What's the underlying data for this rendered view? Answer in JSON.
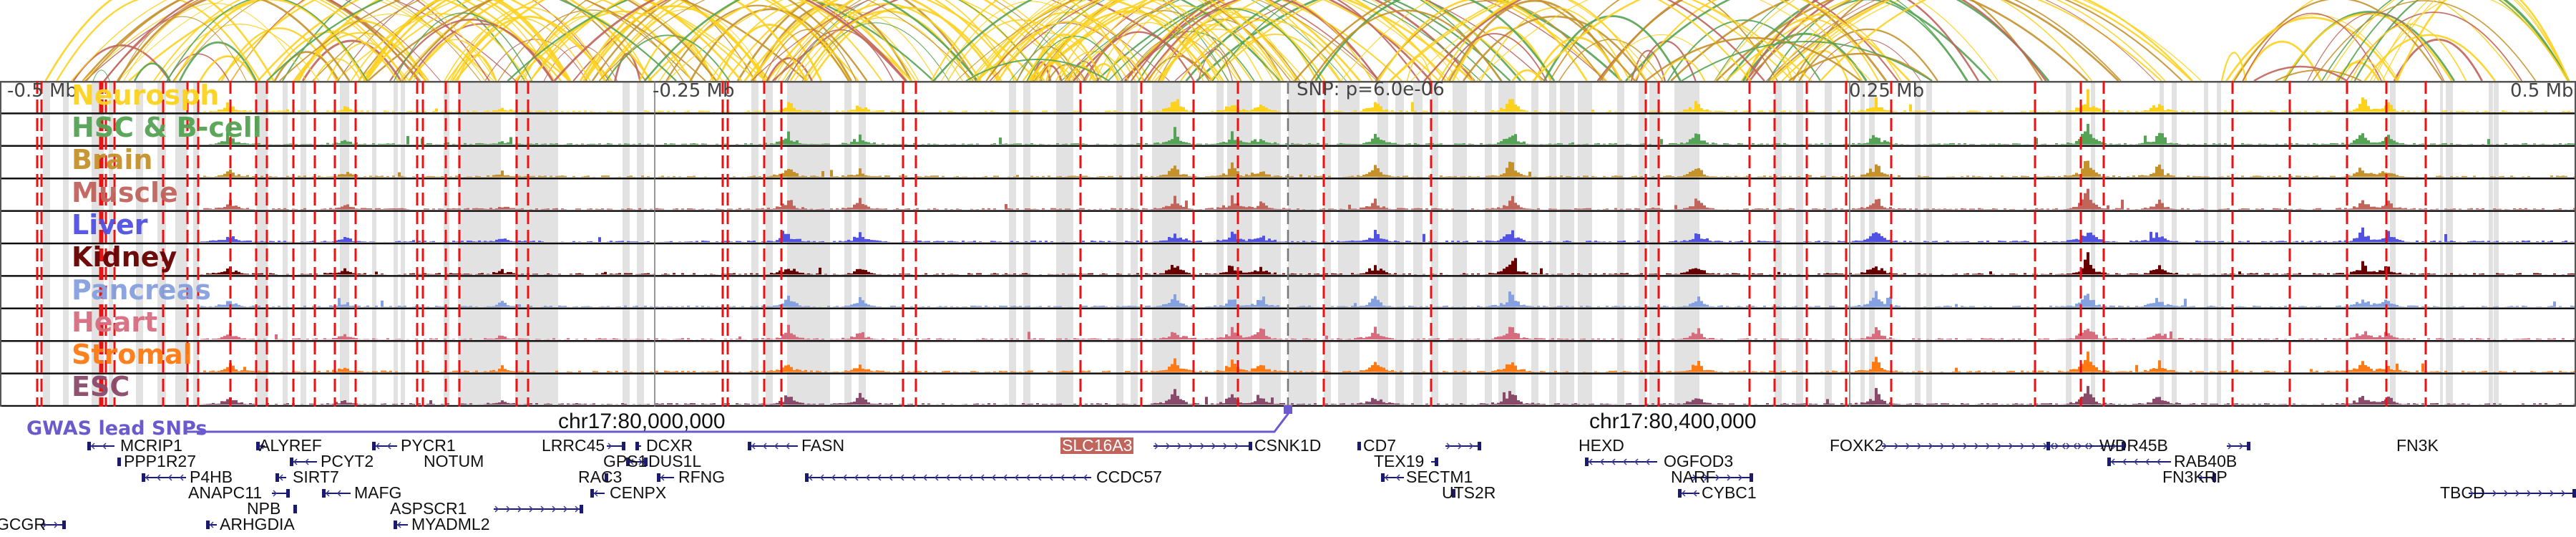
{
  "axis": {
    "labels": [
      "-0.5 Mb",
      "-0.25 Mb",
      "0.25 Mb",
      "0.5 Mb"
    ],
    "snp_label": "SNP: p=6.0e-06"
  },
  "chromosome": {
    "labels": [
      "chr17:80,000,000",
      "chr17:80,400,000"
    ]
  },
  "gwas": {
    "label": "GWAS lead SNPs",
    "color": "#6a5acd"
  },
  "tracks": [
    {
      "label": "Neurosph",
      "color": "#fdd21f"
    },
    {
      "label": "HSC & B-cell",
      "color": "#55a354"
    },
    {
      "label": "Brain",
      "color": "#c5912b"
    },
    {
      "label": "Muscle",
      "color": "#c0645c"
    },
    {
      "label": "Liver",
      "color": "#5151e2"
    },
    {
      "label": "Kidney",
      "color": "#670000"
    },
    {
      "label": "Pancreas",
      "color": "#86a1e0"
    },
    {
      "label": "Heart",
      "color": "#d66d7f"
    },
    {
      "label": "Stromal",
      "color": "#ff7a12"
    },
    {
      "label": "ESC",
      "color": "#8a4a6a"
    }
  ],
  "genes": [
    {
      "name": "MCRIP1",
      "strand": "-"
    },
    {
      "name": "ALYREF",
      "strand": "-"
    },
    {
      "name": "PYCR1",
      "strand": "-"
    },
    {
      "name": "LRRC45",
      "strand": "+"
    },
    {
      "name": "DCXR",
      "strand": "-"
    },
    {
      "name": "FASN",
      "strand": "-"
    },
    {
      "name": "SLC16A3",
      "strand": "+",
      "highlighted": true
    },
    {
      "name": "CSNK1D",
      "strand": "-"
    },
    {
      "name": "CD7",
      "strand": "-"
    },
    {
      "name": "HEXD",
      "strand": "+"
    },
    {
      "name": "FOXK2",
      "strand": "+"
    },
    {
      "name": "WDR45B",
      "strand": "-"
    },
    {
      "name": "FN3K",
      "strand": "+"
    },
    {
      "name": "PPP1R27",
      "strand": "-"
    },
    {
      "name": "PCYT2",
      "strand": "-"
    },
    {
      "name": "NOTUM",
      "strand": "-"
    },
    {
      "name": "GPS1",
      "strand": "+"
    },
    {
      "name": "DUS1L",
      "strand": "-"
    },
    {
      "name": "TEX19",
      "strand": "+"
    },
    {
      "name": "OGFOD3",
      "strand": "-"
    },
    {
      "name": "RAB40B",
      "strand": "-"
    },
    {
      "name": "P4HB",
      "strand": "-"
    },
    {
      "name": "SIRT7",
      "strand": "-"
    },
    {
      "name": "RAC3",
      "strand": "+"
    },
    {
      "name": "RFNG",
      "strand": "-"
    },
    {
      "name": "CCDC57",
      "strand": "-"
    },
    {
      "name": "SECTM1",
      "strand": "-"
    },
    {
      "name": "NARF",
      "strand": "+"
    },
    {
      "name": "FN3KRP",
      "strand": "+"
    },
    {
      "name": "ANAPC11",
      "strand": "+"
    },
    {
      "name": "MAFG",
      "strand": "-"
    },
    {
      "name": "CENPX",
      "strand": "-"
    },
    {
      "name": "UTS2R",
      "strand": "+"
    },
    {
      "name": "CYBC1",
      "strand": "-"
    },
    {
      "name": "TBCD",
      "strand": "+"
    },
    {
      "name": "NPB",
      "strand": "+"
    },
    {
      "name": "ASPSCR1",
      "strand": "+"
    },
    {
      "name": "GCGR",
      "strand": "+"
    },
    {
      "name": "ARHGDIA",
      "strand": "-"
    },
    {
      "name": "MYADML2",
      "strand": "-"
    }
  ]
}
